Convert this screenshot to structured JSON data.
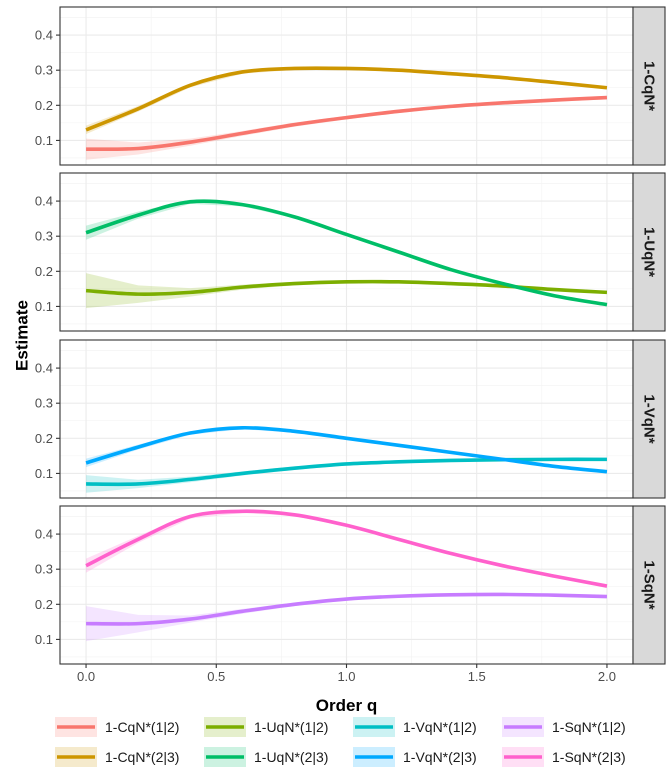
{
  "chart_data": {
    "type": "line",
    "xlabel": "Order q",
    "ylabel": "Estimate",
    "xlim": [
      -0.1,
      2.1
    ],
    "ylim": [
      0.03,
      0.48
    ],
    "x_ticks": [
      0.0,
      0.5,
      1.0,
      1.5,
      2.0
    ],
    "x_tick_labels": [
      "0.0",
      "0.5",
      "1.0",
      "1.5",
      "2.0"
    ],
    "y_ticks": [
      0.1,
      0.2,
      0.3,
      0.4
    ],
    "y_tick_labels": [
      "0.1",
      "0.2",
      "0.3",
      "0.4"
    ],
    "grid": true,
    "legend_position": "bottom",
    "x": [
      0.0,
      0.2,
      0.4,
      0.6,
      0.8,
      1.0,
      1.2,
      1.4,
      1.6,
      1.8,
      2.0
    ],
    "panels": [
      {
        "strip": "1-CqN*",
        "series": [
          {
            "name": "1-CqN*(1|2)",
            "color": "#F8766D",
            "values": [
              0.075,
              0.077,
              0.095,
              0.12,
              0.145,
              0.165,
              0.183,
              0.197,
              0.207,
              0.215,
              0.222
            ],
            "ci_lower": [
              0.045,
              0.06,
              0.085,
              0.113,
              0.139,
              0.16,
              0.178,
              0.192,
              0.202,
              0.21,
              0.217
            ],
            "ci_upper": [
              0.105,
              0.094,
              0.105,
              0.127,
              0.151,
              0.17,
              0.188,
              0.202,
              0.212,
              0.22,
              0.227
            ]
          },
          {
            "name": "1-CqN*(2|3)",
            "color": "#CD9600",
            "values": [
              0.13,
              0.19,
              0.257,
              0.295,
              0.305,
              0.305,
              0.3,
              0.29,
              0.279,
              0.265,
              0.25
            ],
            "ci_lower": [
              0.118,
              0.182,
              0.251,
              0.29,
              0.301,
              0.301,
              0.296,
              0.286,
              0.275,
              0.261,
              0.246
            ],
            "ci_upper": [
              0.142,
              0.198,
              0.263,
              0.3,
              0.309,
              0.309,
              0.304,
              0.294,
              0.283,
              0.269,
              0.254
            ]
          }
        ]
      },
      {
        "strip": "1-UqN*",
        "series": [
          {
            "name": "1-UqN*(1|2)",
            "color": "#7CAE00",
            "values": [
              0.145,
              0.135,
              0.14,
              0.155,
              0.165,
              0.17,
              0.17,
              0.165,
              0.158,
              0.148,
              0.14
            ],
            "ci_lower": [
              0.095,
              0.11,
              0.128,
              0.148,
              0.16,
              0.166,
              0.166,
              0.161,
              0.154,
              0.144,
              0.136
            ],
            "ci_upper": [
              0.195,
              0.16,
              0.152,
              0.162,
              0.17,
              0.174,
              0.174,
              0.169,
              0.162,
              0.152,
              0.144
            ]
          },
          {
            "name": "1-UqN*(2|3)",
            "color": "#00BE67",
            "values": [
              0.31,
              0.36,
              0.398,
              0.39,
              0.355,
              0.305,
              0.255,
              0.205,
              0.165,
              0.13,
              0.105
            ],
            "ci_lower": [
              0.29,
              0.35,
              0.392,
              0.385,
              0.351,
              0.301,
              0.251,
              0.201,
              0.161,
              0.126,
              0.101
            ],
            "ci_upper": [
              0.33,
              0.37,
              0.404,
              0.395,
              0.359,
              0.309,
              0.259,
              0.209,
              0.169,
              0.134,
              0.109
            ]
          }
        ]
      },
      {
        "strip": "1-VqN*",
        "series": [
          {
            "name": "1-VqN*(1|2)",
            "color": "#00BFC4",
            "values": [
              0.07,
              0.07,
              0.083,
              0.1,
              0.115,
              0.127,
              0.133,
              0.137,
              0.139,
              0.14,
              0.14
            ],
            "ci_lower": [
              0.045,
              0.058,
              0.075,
              0.094,
              0.11,
              0.123,
              0.129,
              0.133,
              0.135,
              0.136,
              0.136
            ],
            "ci_upper": [
              0.095,
              0.082,
              0.091,
              0.106,
              0.12,
              0.131,
              0.137,
              0.141,
              0.143,
              0.144,
              0.144
            ]
          },
          {
            "name": "1-VqN*(2|3)",
            "color": "#00A9FF",
            "values": [
              0.13,
              0.175,
              0.215,
              0.23,
              0.22,
              0.2,
              0.18,
              0.16,
              0.14,
              0.12,
              0.105
            ],
            "ci_lower": [
              0.118,
              0.168,
              0.21,
              0.226,
              0.216,
              0.196,
              0.176,
              0.156,
              0.136,
              0.116,
              0.101
            ],
            "ci_upper": [
              0.142,
              0.182,
              0.22,
              0.234,
              0.224,
              0.204,
              0.184,
              0.164,
              0.144,
              0.124,
              0.109
            ]
          }
        ]
      },
      {
        "strip": "1-SqN*",
        "series": [
          {
            "name": "1-SqN*(1|2)",
            "color": "#C77CFF",
            "values": [
              0.145,
              0.145,
              0.158,
              0.18,
              0.2,
              0.215,
              0.223,
              0.227,
              0.228,
              0.226,
              0.222
            ],
            "ci_lower": [
              0.095,
              0.12,
              0.148,
              0.173,
              0.195,
              0.211,
              0.219,
              0.223,
              0.224,
              0.222,
              0.218
            ],
            "ci_upper": [
              0.195,
              0.17,
              0.168,
              0.187,
              0.205,
              0.219,
              0.227,
              0.231,
              0.232,
              0.23,
              0.226
            ]
          },
          {
            "name": "1-SqN*(2|3)",
            "color": "#FF61CC",
            "values": [
              0.31,
              0.385,
              0.45,
              0.465,
              0.455,
              0.425,
              0.385,
              0.345,
              0.31,
              0.28,
              0.252
            ],
            "ci_lower": [
              0.29,
              0.375,
              0.444,
              0.46,
              0.451,
              0.421,
              0.381,
              0.341,
              0.306,
              0.276,
              0.248
            ],
            "ci_upper": [
              0.33,
              0.395,
              0.456,
              0.47,
              0.459,
              0.429,
              0.389,
              0.349,
              0.314,
              0.284,
              0.256
            ]
          }
        ]
      }
    ],
    "legend": [
      {
        "label": "1-CqN*(1|2)",
        "color": "#F8766D"
      },
      {
        "label": "1-UqN*(1|2)",
        "color": "#7CAE00"
      },
      {
        "label": "1-VqN*(1|2)",
        "color": "#00BFC4"
      },
      {
        "label": "1-SqN*(1|2)",
        "color": "#C77CFF"
      },
      {
        "label": "1-CqN*(2|3)",
        "color": "#CD9600"
      },
      {
        "label": "1-UqN*(2|3)",
        "color": "#00BE67"
      },
      {
        "label": "1-VqN*(2|3)",
        "color": "#00A9FF"
      },
      {
        "label": "1-SqN*(2|3)",
        "color": "#FF61CC"
      }
    ]
  }
}
